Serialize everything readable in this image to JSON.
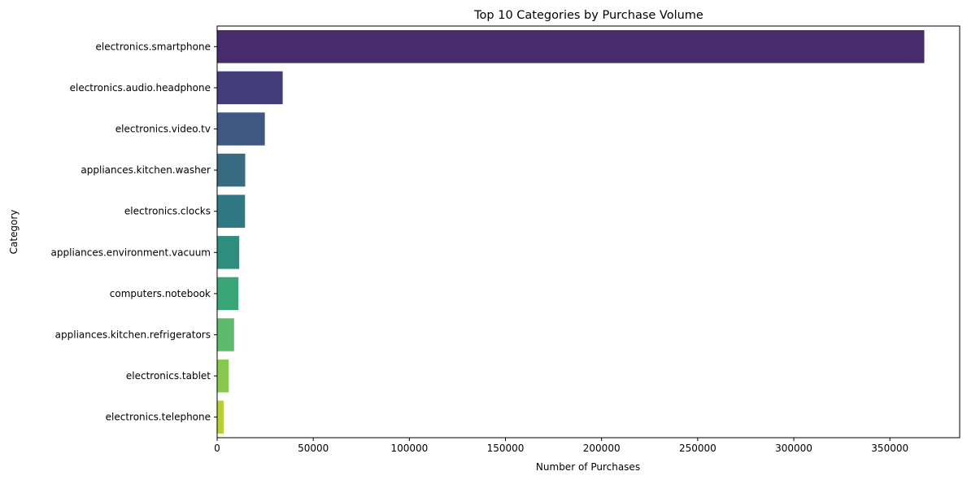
{
  "chart_data": {
    "type": "bar",
    "orientation": "horizontal",
    "title": "Top 10 Categories by Purchase Volume",
    "xlabel": "Number of Purchases",
    "ylabel": "Category",
    "categories": [
      "electronics.smartphone",
      "electronics.audio.headphone",
      "electronics.video.tv",
      "appliances.kitchen.washer",
      "electronics.clocks",
      "appliances.environment.vacuum",
      "computers.notebook",
      "appliances.kitchen.refrigerators",
      "electronics.tablet",
      "electronics.telephone"
    ],
    "values": [
      367900,
      34100,
      24800,
      14600,
      14500,
      11500,
      11100,
      8800,
      6000,
      3400
    ],
    "colors": [
      "#482878",
      "#3e4989",
      "#31688e",
      "#26828e",
      "#1f9e89",
      "#35b779",
      "#6ece58",
      "#b5de2b",
      "#472d7b",
      "#fde725"
    ],
    "bar_colors": [
      "#472c6c",
      "#433d79",
      "#3e5882",
      "#366b81",
      "#2f7781",
      "#2d8e7e",
      "#3aa678",
      "#5db96b",
      "#87c94f",
      "#b8d132"
    ],
    "xlim": [
      0,
      386300
    ],
    "xticks": [
      0,
      50000,
      100000,
      150000,
      200000,
      250000,
      300000,
      350000
    ],
    "xtick_labels": [
      "0",
      "50000",
      "100000",
      "150000",
      "200000",
      "250000",
      "300000",
      "350000"
    ],
    "grid": false,
    "legend": "none"
  }
}
